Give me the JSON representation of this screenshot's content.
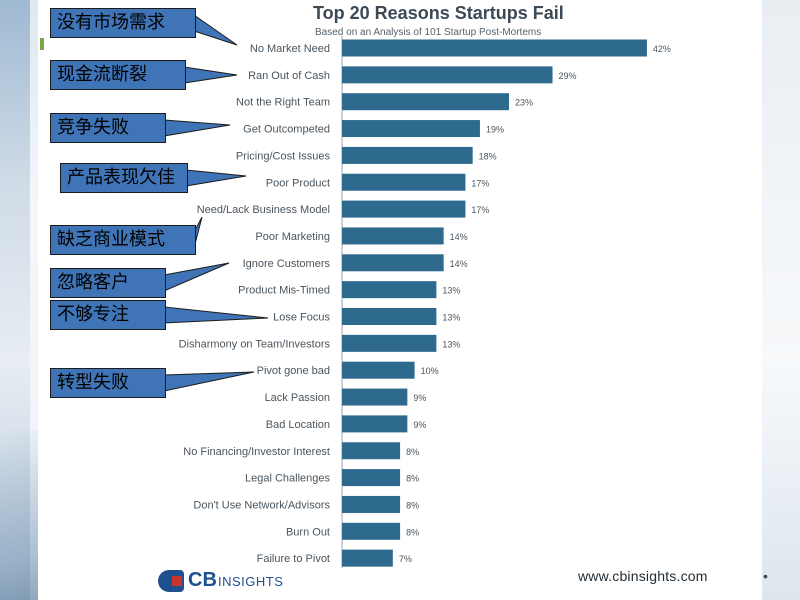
{
  "chart_data": {
    "type": "bar",
    "orientation": "horizontal",
    "title": "Top 20 Reasons Startups Fail",
    "subtitle": "Based on an Analysis of 101 Startup Post-Mortems",
    "categories": [
      "No Market Need",
      "Ran Out of Cash",
      "Not the Right Team",
      "Get Outcompeted",
      "Pricing/Cost Issues",
      "Poor Product",
      "Need/Lack Business Model",
      "Poor Marketing",
      "Ignore Customers",
      "Product Mis-Timed",
      "Lose Focus",
      "Disharmony on Team/Investors",
      "Pivot gone bad",
      "Lack Passion",
      "Bad Location",
      "No Financing/Investor Interest",
      "Legal Challenges",
      "Don't Use Network/Advisors",
      "Burn Out",
      "Failure to Pivot"
    ],
    "values": [
      42,
      29,
      23,
      19,
      18,
      17,
      17,
      14,
      14,
      13,
      13,
      13,
      10,
      9,
      9,
      8,
      8,
      8,
      8,
      7
    ],
    "value_labels": [
      "42%",
      "29%",
      "23%",
      "19%",
      "18%",
      "17%",
      "17%",
      "14%",
      "14%",
      "13%",
      "13%",
      "13%",
      "10%",
      "9%",
      "9%",
      "8%",
      "8%",
      "8%",
      "8%",
      "7%"
    ],
    "xlim": [
      0,
      45
    ],
    "bar_color": "#2d6a8e",
    "grid": false
  },
  "callouts": [
    {
      "text": "没有市场需求",
      "category_index": 0
    },
    {
      "text": "现金流断裂",
      "category_index": 1
    },
    {
      "text": "竞争失败",
      "category_index": 3
    },
    {
      "text": "产品表现欠佳",
      "category_index": 5
    },
    {
      "text": "缺乏商业模式",
      "category_index": 6
    },
    {
      "text": "忽略客户",
      "category_index": 8
    },
    {
      "text": "不够专注",
      "category_index": 10
    },
    {
      "text": "转型失败",
      "category_index": 12
    }
  ],
  "footer": {
    "logo_cb": "CB",
    "logo_insights": "INSIGHTS",
    "url": "www.cbinsights.com",
    "dot": "•"
  },
  "colors": {
    "callout_fill": "#3f74b6",
    "bar": "#2d6a8e",
    "logo": "#1e4f8e",
    "logo_accent": "#c8352b"
  }
}
